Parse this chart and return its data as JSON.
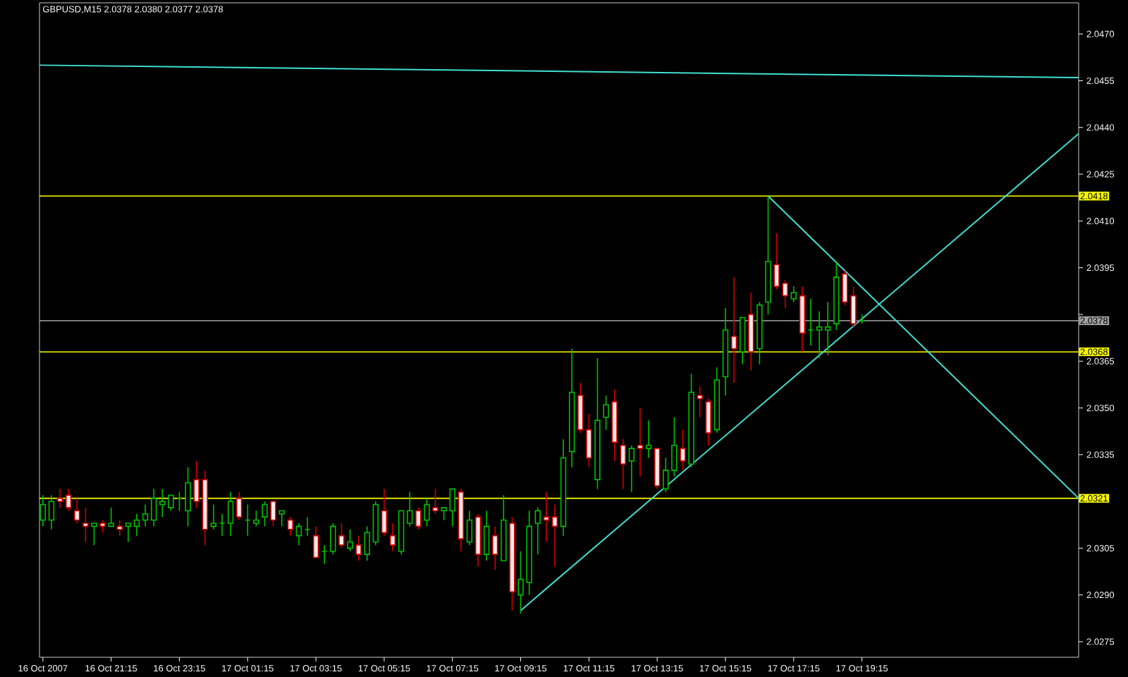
{
  "chart_data": {
    "type": "candlestick",
    "title": "GBPUSD,M15  2.0378 2.0380 2.0377 2.0378",
    "x": [
      "2007-10-16T19:15",
      "2007-10-16T19:30",
      "2007-10-16T19:45",
      "2007-10-16T20:00",
      "2007-10-16T20:15",
      "2007-10-16T20:30",
      "2007-10-16T20:45",
      "2007-10-16T21:00",
      "2007-10-16T21:15",
      "2007-10-16T21:30",
      "2007-10-16T21:45",
      "2007-10-16T22:00",
      "2007-10-16T22:15",
      "2007-10-16T22:30",
      "2007-10-16T22:45",
      "2007-10-16T23:00",
      "2007-10-16T23:15",
      "2007-10-16T23:30",
      "2007-10-16T23:45",
      "2007-10-17T00:00",
      "2007-10-17T00:15",
      "2007-10-17T00:30",
      "2007-10-17T00:45",
      "2007-10-17T01:00",
      "2007-10-17T01:15",
      "2007-10-17T01:30",
      "2007-10-17T01:45",
      "2007-10-17T02:00",
      "2007-10-17T02:15",
      "2007-10-17T02:30",
      "2007-10-17T02:45",
      "2007-10-17T03:00",
      "2007-10-17T03:15",
      "2007-10-17T03:30",
      "2007-10-17T03:45",
      "2007-10-17T04:00",
      "2007-10-17T04:15",
      "2007-10-17T04:30",
      "2007-10-17T04:45",
      "2007-10-17T05:00",
      "2007-10-17T05:15",
      "2007-10-17T05:30",
      "2007-10-17T05:45",
      "2007-10-17T06:00",
      "2007-10-17T06:15",
      "2007-10-17T06:30",
      "2007-10-17T06:45",
      "2007-10-17T07:00",
      "2007-10-17T07:15",
      "2007-10-17T07:30",
      "2007-10-17T07:45",
      "2007-10-17T08:00",
      "2007-10-17T08:15",
      "2007-10-17T08:30",
      "2007-10-17T08:45",
      "2007-10-17T09:00",
      "2007-10-17T09:15",
      "2007-10-17T09:30",
      "2007-10-17T09:45",
      "2007-10-17T10:00",
      "2007-10-17T10:15",
      "2007-10-17T10:30",
      "2007-10-17T10:45",
      "2007-10-17T11:00",
      "2007-10-17T11:15",
      "2007-10-17T11:30",
      "2007-10-17T11:45",
      "2007-10-17T12:00",
      "2007-10-17T12:15",
      "2007-10-17T12:30",
      "2007-10-17T12:45",
      "2007-10-17T13:00",
      "2007-10-17T13:15",
      "2007-10-17T13:30",
      "2007-10-17T13:45",
      "2007-10-17T14:00",
      "2007-10-17T14:15",
      "2007-10-17T14:30",
      "2007-10-17T14:45",
      "2007-10-17T15:00",
      "2007-10-17T15:15",
      "2007-10-17T15:30",
      "2007-10-17T15:45",
      "2007-10-17T16:00",
      "2007-10-17T16:15",
      "2007-10-17T16:30",
      "2007-10-17T16:45",
      "2007-10-17T17:00",
      "2007-10-17T17:15",
      "2007-10-17T17:30",
      "2007-10-17T17:45",
      "2007-10-17T18:00",
      "2007-10-17T18:15",
      "2007-10-17T18:30",
      "2007-10-17T18:45",
      "2007-10-17T19:00",
      "2007-10-17T19:15"
    ],
    "ohlc": [
      [
        2.0314,
        2.0322,
        2.0312,
        2.0319
      ],
      [
        2.0314,
        2.0322,
        2.0311,
        2.032
      ],
      [
        2.0321,
        2.0324,
        2.0318,
        2.032
      ],
      [
        2.0322,
        2.0324,
        2.0317,
        2.0318
      ],
      [
        2.0317,
        2.0321,
        2.0313,
        2.0314
      ],
      [
        2.0313,
        2.0318,
        2.0307,
        2.0312
      ],
      [
        2.0312,
        2.0313,
        2.0306,
        2.0313
      ],
      [
        2.0313,
        2.0314,
        2.031,
        2.0312
      ],
      [
        2.0312,
        2.0318,
        2.0312,
        2.0313
      ],
      [
        2.0312,
        2.0314,
        2.0309,
        2.0311
      ],
      [
        2.0312,
        2.0313,
        2.0307,
        2.0313
      ],
      [
        2.0312,
        2.0316,
        2.0309,
        2.0314
      ],
      [
        2.0314,
        2.0319,
        2.0312,
        2.0316
      ],
      [
        2.0314,
        2.0324,
        2.0312,
        2.0321
      ],
      [
        2.0319,
        2.0324,
        2.0315,
        2.032
      ],
      [
        2.0318,
        2.0322,
        2.0317,
        2.0322
      ],
      [
        2.0321,
        2.0323,
        2.0317,
        2.0321
      ],
      [
        2.0317,
        2.0331,
        2.0312,
        2.0326
      ],
      [
        2.0327,
        2.0333,
        2.0318,
        2.032
      ],
      [
        2.0327,
        2.033,
        2.0306,
        2.0311
      ],
      [
        2.0312,
        2.0319,
        2.0311,
        2.0313
      ],
      [
        2.0313,
        2.0316,
        2.0309,
        2.0313
      ],
      [
        2.0313,
        2.0323,
        2.0309,
        2.032
      ],
      [
        2.0321,
        2.0323,
        2.0314,
        2.0315
      ],
      [
        2.0314,
        2.0319,
        2.0309,
        2.0314
      ],
      [
        2.0313,
        2.0317,
        2.0312,
        2.0314
      ],
      [
        2.0315,
        2.032,
        2.0312,
        2.0319
      ],
      [
        2.032,
        2.032,
        2.0312,
        2.0314
      ],
      [
        2.0316,
        2.0317,
        2.0312,
        2.0317
      ],
      [
        2.0314,
        2.0315,
        2.0309,
        2.0311
      ],
      [
        2.0309,
        2.0313,
        2.0306,
        2.0312
      ],
      [
        2.0311,
        2.0315,
        2.0309,
        2.0311
      ],
      [
        2.0309,
        2.0312,
        2.0302,
        2.0302
      ],
      [
        2.0304,
        2.0306,
        2.03,
        2.0304
      ],
      [
        2.0304,
        2.0313,
        2.0303,
        2.0312
      ],
      [
        2.0309,
        2.0313,
        2.0305,
        2.0306
      ],
      [
        2.0305,
        2.0311,
        2.0304,
        2.0307
      ],
      [
        2.0306,
        2.0309,
        2.0301,
        2.0303
      ],
      [
        2.0303,
        2.0312,
        2.0301,
        2.031
      ],
      [
        2.0307,
        2.032,
        2.0306,
        2.0319
      ],
      [
        2.0317,
        2.0324,
        2.0309,
        2.031
      ],
      [
        2.0309,
        2.0313,
        2.0304,
        2.0306
      ],
      [
        2.0304,
        2.0317,
        2.0303,
        2.0317
      ],
      [
        2.0313,
        2.0323,
        2.0312,
        2.0317
      ],
      [
        2.0317,
        2.0318,
        2.0311,
        2.0312
      ],
      [
        2.0314,
        2.0321,
        2.0312,
        2.0319
      ],
      [
        2.0318,
        2.0324,
        2.0316,
        2.0317
      ],
      [
        2.0317,
        2.0318,
        2.0314,
        2.0318
      ],
      [
        2.0317,
        2.0324,
        2.0312,
        2.0324
      ],
      [
        2.0323,
        2.0324,
        2.0304,
        2.0308
      ],
      [
        2.0307,
        2.0317,
        2.0306,
        2.0314
      ],
      [
        2.0315,
        2.0316,
        2.0299,
        2.0303
      ],
      [
        2.0303,
        2.0317,
        2.0301,
        2.0312
      ],
      [
        2.0309,
        2.0312,
        2.0298,
        2.0303
      ],
      [
        2.0301,
        2.0322,
        2.0301,
        2.0314
      ],
      [
        2.0313,
        2.0315,
        2.0285,
        2.0291
      ],
      [
        2.029,
        2.0304,
        2.0284,
        2.0295
      ],
      [
        2.0294,
        2.0317,
        2.029,
        2.0312
      ],
      [
        2.0313,
        2.0318,
        2.0303,
        2.0317
      ],
      [
        2.0315,
        2.0323,
        2.0307,
        2.0314
      ],
      [
        2.0315,
        2.0319,
        2.0299,
        2.0312
      ],
      [
        2.0312,
        2.034,
        2.0309,
        2.0334
      ],
      [
        2.0336,
        2.0369,
        2.0331,
        2.0355
      ],
      [
        2.0354,
        2.0358,
        2.0342,
        2.0343
      ],
      [
        2.0343,
        2.0348,
        2.0331,
        2.0334
      ],
      [
        2.0327,
        2.0366,
        2.0324,
        2.0346
      ],
      [
        2.0347,
        2.0354,
        2.0343,
        2.0351
      ],
      [
        2.0352,
        2.0356,
        2.0333,
        2.0339
      ],
      [
        2.0338,
        2.034,
        2.0324,
        2.0332
      ],
      [
        2.0333,
        2.0338,
        2.0323,
        2.0337
      ],
      [
        2.0338,
        2.035,
        2.0328,
        2.0337
      ],
      [
        2.0337,
        2.0346,
        2.0334,
        2.0338
      ],
      [
        2.0337,
        2.0337,
        2.0324,
        2.0325
      ],
      [
        2.0324,
        2.0334,
        2.0323,
        2.033
      ],
      [
        2.033,
        2.0347,
        2.0328,
        2.0338
      ],
      [
        2.0337,
        2.0343,
        2.033,
        2.0333
      ],
      [
        2.0332,
        2.0361,
        2.0331,
        2.0355
      ],
      [
        2.0354,
        2.0357,
        2.0347,
        2.0353
      ],
      [
        2.0352,
        2.0353,
        2.0338,
        2.0342
      ],
      [
        2.0343,
        2.0363,
        2.0342,
        2.0359
      ],
      [
        2.036,
        2.0382,
        2.0354,
        2.0375
      ],
      [
        2.0373,
        2.0392,
        2.0358,
        2.0369
      ],
      [
        2.0368,
        2.0379,
        2.0364,
        2.0379
      ],
      [
        2.038,
        2.0387,
        2.0362,
        2.0368
      ],
      [
        2.0369,
        2.0384,
        2.0364,
        2.0383
      ],
      [
        2.0384,
        2.0418,
        2.038,
        2.0397
      ],
      [
        2.0396,
        2.0406,
        2.0388,
        2.0389
      ],
      [
        2.039,
        2.0391,
        2.0382,
        2.0386
      ],
      [
        2.0385,
        2.0389,
        2.0384,
        2.0387
      ],
      [
        2.0386,
        2.0389,
        2.0368,
        2.0374
      ],
      [
        2.0375,
        2.0385,
        2.037,
        2.0375
      ],
      [
        2.0375,
        2.0381,
        2.0366,
        2.0376
      ],
      [
        2.0375,
        2.0384,
        2.0367,
        2.0376
      ],
      [
        2.0377,
        2.0397,
        2.0375,
        2.0392
      ],
      [
        2.0393,
        2.0394,
        2.0383,
        2.0384
      ],
      [
        2.0386,
        2.0389,
        2.0376,
        2.0377
      ],
      [
        2.0378,
        2.038,
        2.0377,
        2.0378
      ]
    ],
    "series": [
      {
        "type": "line",
        "color": "#40e0d0",
        "x": [
          "2007-10-16T19:09",
          "2007-10-18T01:36"
        ],
        "values": [
          2.046,
          2.0456
        ]
      },
      {
        "type": "line",
        "color": "#40e0d0",
        "x": [
          "2007-10-17T09:15",
          "2007-10-18T01:36"
        ],
        "values": [
          2.0285,
          2.0438
        ]
      },
      {
        "type": "line",
        "color": "#40e0d0",
        "x": [
          "2007-10-17T16:30",
          "2007-10-18T01:36"
        ],
        "values": [
          2.0418,
          2.0321
        ]
      }
    ],
    "ref_lines": [
      {
        "axis": "y",
        "value": 2.0418,
        "label": "2.0418",
        "color": "#ffff00"
      },
      {
        "axis": "y",
        "value": 2.0368,
        "label": "2.0368",
        "color": "#ffff00"
      },
      {
        "axis": "y",
        "value": 2.0321,
        "label": "2.0321",
        "color": "#ffff00"
      },
      {
        "axis": "y",
        "value": 2.0378,
        "label": "2.0378",
        "color": "#a0a0a0"
      }
    ],
    "xlim": [
      "2007-10-16T19:09",
      "2007-10-18T01:36"
    ],
    "ylim": [
      2.027,
      2.048
    ],
    "xticks": [
      {
        "value": "2007-10-16T19:15",
        "label": "16 Oct 2007"
      },
      {
        "value": "2007-10-16T21:15",
        "label": "16 Oct 21:15"
      },
      {
        "value": "2007-10-16T23:15",
        "label": "16 Oct 23:15"
      },
      {
        "value": "2007-10-17T01:15",
        "label": "17 Oct 01:15"
      },
      {
        "value": "2007-10-17T03:15",
        "label": "17 Oct 03:15"
      },
      {
        "value": "2007-10-17T05:15",
        "label": "17 Oct 05:15"
      },
      {
        "value": "2007-10-17T07:15",
        "label": "17 Oct 07:15"
      },
      {
        "value": "2007-10-17T09:15",
        "label": "17 Oct 09:15"
      },
      {
        "value": "2007-10-17T11:15",
        "label": "17 Oct 11:15"
      },
      {
        "value": "2007-10-17T13:15",
        "label": "17 Oct 13:15"
      },
      {
        "value": "2007-10-17T15:15",
        "label": "17 Oct 15:15"
      },
      {
        "value": "2007-10-17T17:15",
        "label": "17 Oct 17:15"
      },
      {
        "value": "2007-10-17T19:15",
        "label": "17 Oct 19:15"
      }
    ],
    "yticks": [
      {
        "value": 2.0275,
        "label": "2.0275"
      },
      {
        "value": 2.029,
        "label": "2.0290"
      },
      {
        "value": 2.0305,
        "label": "2.0305"
      },
      {
        "value": 2.032,
        "label": null
      },
      {
        "value": 2.0335,
        "label": "2.0335"
      },
      {
        "value": 2.035,
        "label": "2.0350"
      },
      {
        "value": 2.0365,
        "label": "2.0365"
      },
      {
        "value": 2.038,
        "label": null
      },
      {
        "value": 2.0395,
        "label": "2.0395"
      },
      {
        "value": 2.041,
        "label": "2.0410"
      },
      {
        "value": 2.0425,
        "label": "2.0425"
      },
      {
        "value": 2.044,
        "label": "2.0440"
      },
      {
        "value": 2.0455,
        "label": "2.0455"
      },
      {
        "value": 2.047,
        "label": "2.0470"
      }
    ]
  }
}
